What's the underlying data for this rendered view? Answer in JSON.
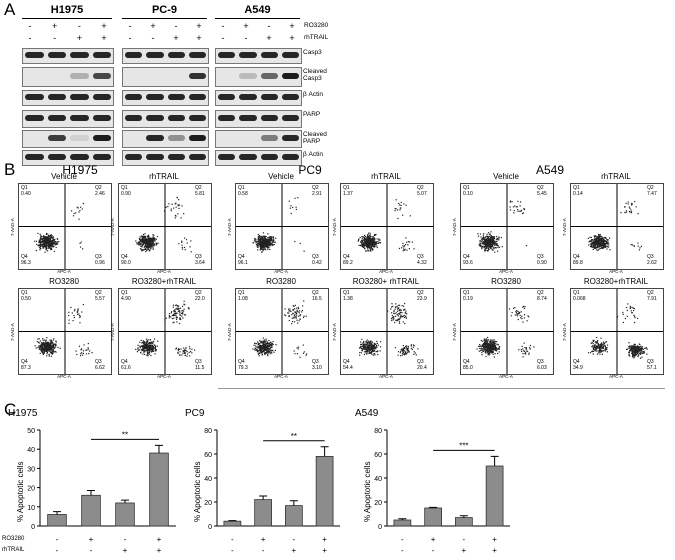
{
  "panels": {
    "a": "A",
    "b": "B",
    "c": "C"
  },
  "western": {
    "cell_lines": [
      "H1975",
      "PC-9",
      "A549"
    ],
    "treatments": [
      {
        "name": "RO3280",
        "signs": [
          "-",
          "+",
          "-",
          "+"
        ]
      },
      {
        "name": "rhTRAIL",
        "signs": [
          "-",
          "-",
          "+",
          "+"
        ]
      }
    ],
    "blot_labels": {
      "casp3": "Casp3",
      "cleaved_casp3": "Cleaved Casp3",
      "actin1": "β Actin",
      "parp": "PARP",
      "cleaved_parp": "Cleaved PARP",
      "actin2": "β Actin"
    }
  },
  "flow": {
    "cell_lines": [
      "H1975",
      "PC9",
      "A549"
    ],
    "conditions": [
      "Vehicle",
      "rhTRAIL",
      "RO3280",
      "RO3280+rhTRAIL"
    ],
    "pc9_combo_label": "RO3280+ rhTRAIL",
    "axis_x": "APC-A",
    "axis_y": "7-AAD-A",
    "quadrants": [
      "Q1",
      "Q2",
      "Q3",
      "Q4"
    ],
    "values": {
      "h1975": [
        {
          "q1": "0.40",
          "q2": "2.46",
          "q3": "0.96",
          "q4": "96.3"
        },
        {
          "q1": "0.90",
          "q2": "5.81",
          "q3": "3.64",
          "q4": "90.0"
        },
        {
          "q1": "0.50",
          "q2": "5.57",
          "q3": "6.62",
          "q4": "87.3"
        },
        {
          "q1": "4.90",
          "q2": "22.0",
          "q3": "11.5",
          "q4": "61.6"
        }
      ],
      "pc9": [
        {
          "q1": "0.58",
          "q2": "2.91",
          "q3": "0.42",
          "q4": "96.1"
        },
        {
          "q1": "1.37",
          "q2": "5.07",
          "q3": "4.32",
          "q4": "89.2"
        },
        {
          "q1": "1.08",
          "q2": "16.5",
          "q3": "3.10",
          "q4": "79.3"
        },
        {
          "q1": "1.38",
          "q2": "23.9",
          "q3": "20.4",
          "q4": "54.4"
        }
      ],
      "a549": [
        {
          "q1": "0.10",
          "q2": "5.45",
          "q3": "0.90",
          "q4": "93.6"
        },
        {
          "q1": "0.14",
          "q2": "7.47",
          "q3": "2.62",
          "q4": "89.8"
        },
        {
          "q1": "0.19",
          "q2": "8.74",
          "q3": "6.03",
          "q4": "85.0"
        },
        {
          "q1": "0.068",
          "q2": "7.91",
          "q3": "57.1",
          "q4": "34.9"
        }
      ]
    }
  },
  "chart_data": [
    {
      "type": "bar",
      "title": "H1975",
      "ylabel": "% Apoptotic cells",
      "ylim": [
        0,
        50
      ],
      "yticks": [
        "0",
        "10",
        "20",
        "30",
        "40",
        "50"
      ],
      "values": [
        6,
        16,
        12,
        38
      ],
      "errors": [
        1.5,
        2.5,
        1.5,
        4
      ],
      "significance": "**",
      "row_labels": [
        "RO3280",
        "rhTRAIL"
      ],
      "signs": [
        [
          "-",
          "+",
          "-",
          "+"
        ],
        [
          "-",
          "-",
          "+",
          "+"
        ]
      ]
    },
    {
      "type": "bar",
      "title": "PC9",
      "ylabel": "% Apoptotic cells",
      "ylim": [
        0,
        80
      ],
      "yticks": [
        "0",
        "20",
        "40",
        "60",
        "80"
      ],
      "values": [
        4,
        22,
        17,
        58
      ],
      "errors": [
        0.5,
        3,
        4,
        8
      ],
      "significance": "**",
      "signs": [
        [
          "-",
          "+",
          "-",
          "+"
        ],
        [
          "-",
          "-",
          "+",
          "+"
        ]
      ]
    },
    {
      "type": "bar",
      "title": "A549",
      "ylabel": "% Apoptotic cells",
      "ylim": [
        0,
        80
      ],
      "yticks": [
        "0",
        "20",
        "40",
        "60",
        "80"
      ],
      "values": [
        5,
        15,
        7,
        50
      ],
      "errors": [
        1,
        0.5,
        1.5,
        8
      ],
      "significance": "***",
      "signs": [
        [
          "-",
          "+",
          "-",
          "+"
        ],
        [
          "-",
          "-",
          "+",
          "+"
        ]
      ]
    }
  ]
}
